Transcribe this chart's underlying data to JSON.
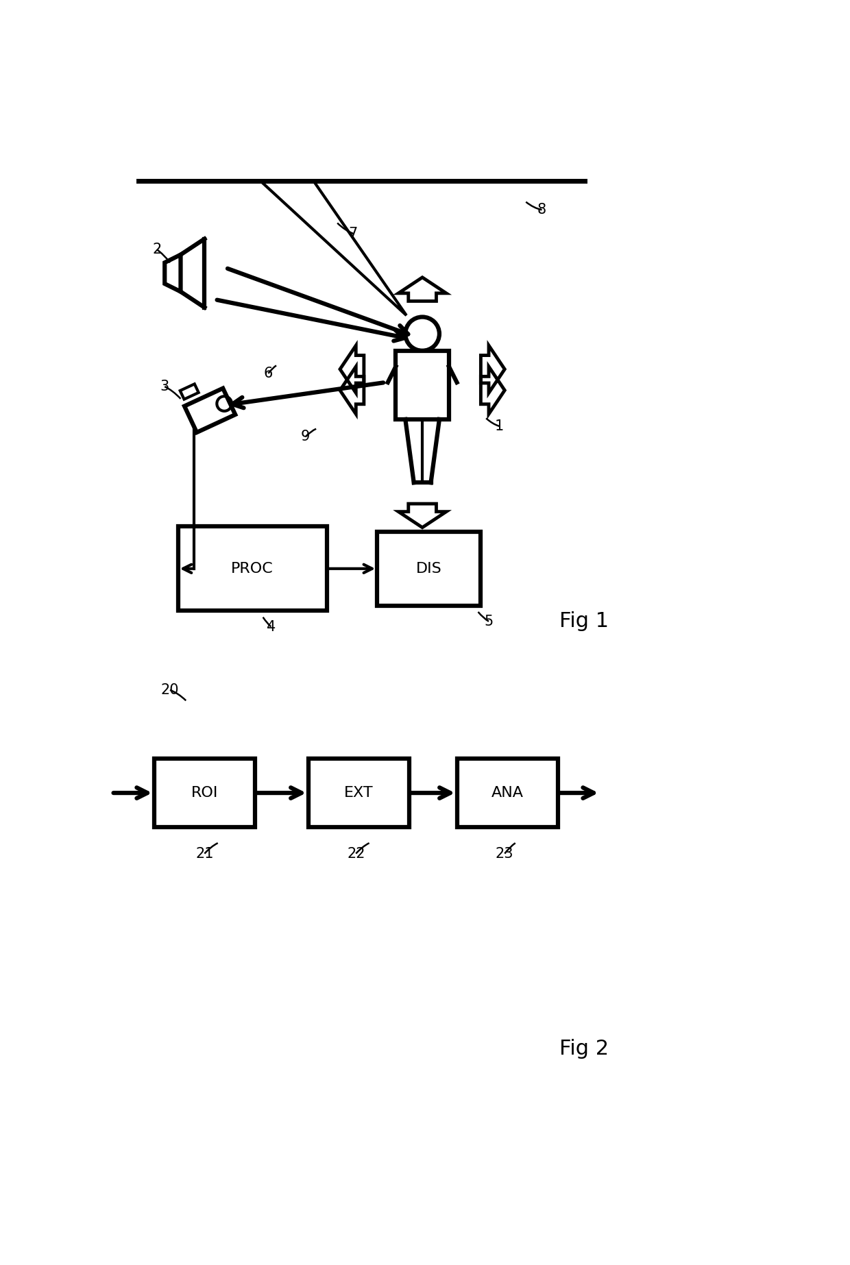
{
  "bg_color": "#ffffff",
  "line_color": "#000000",
  "fig1_label": "Fig 1",
  "fig2_label": "Fig 2",
  "proc_label": "PROC",
  "dis_label": "DIS",
  "roi_label": "ROI",
  "ext_label": "EXT",
  "ana_label": "ANA",
  "lw_main": 3.0,
  "lw_thick": 4.5,
  "fs_label": 16,
  "fs_ref": 15,
  "fs_fig": 22
}
